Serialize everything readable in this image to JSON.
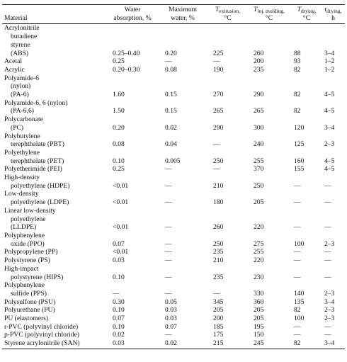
{
  "table": {
    "header": [
      {
        "lines": [
          "Material"
        ]
      },
      {
        "lines": [
          "Water",
          "absorption, %"
        ]
      },
      {
        "lines": [
          "Maximum",
          "water, %"
        ]
      },
      {
        "main": "T",
        "sub": "extrusion,",
        "unit": "°C"
      },
      {
        "main": "T",
        "sub": "inj. molding,",
        "unit": "°C"
      },
      {
        "main": "T",
        "sub": "drying,",
        "unit": "°C"
      },
      {
        "main": "t",
        "sub": "drying,",
        "unit": "h"
      }
    ],
    "rows": [
      {
        "material": [
          "Acrylonitrile",
          "butadiene",
          "styrene",
          "(ABS)"
        ],
        "values": [
          "0.25–0.40",
          "0.20",
          "225",
          "260",
          "88",
          "3–4"
        ]
      },
      {
        "material": [
          "Acetal"
        ],
        "values": [
          "0.25",
          "—",
          "—",
          "200",
          "93",
          "1–2"
        ]
      },
      {
        "material": [
          "Acrylic"
        ],
        "values": [
          "0.20–0.30",
          "0.08",
          "190",
          "235",
          "82",
          "1–2"
        ]
      },
      {
        "material": [
          "Polyamide-6",
          "(nylon)",
          "(PA-6)"
        ],
        "values": [
          "1.60",
          "0.15",
          "270",
          "290",
          "82",
          "4–5"
        ]
      },
      {
        "material": [
          "Polyamide-6, 6 (nylon)",
          "(PA-6,6)"
        ],
        "values": [
          "1.50",
          "0.15",
          "265",
          "265",
          "82",
          "4–5"
        ]
      },
      {
        "material": [
          "Polycarbonate",
          "(PC)"
        ],
        "values": [
          "0.20",
          "0.02",
          "290",
          "300",
          "120",
          "3–4"
        ]
      },
      {
        "material": [
          "Polybutylene",
          "terephthalate (PBT)"
        ],
        "values": [
          "0.08",
          "0.04",
          "—",
          "240",
          "125",
          "2–3"
        ]
      },
      {
        "material": [
          "Polyethylene",
          "terephthalate (PET)"
        ],
        "values": [
          "0.10",
          "0.005",
          "250",
          "255",
          "160",
          "4–5"
        ]
      },
      {
        "material": [
          "Polyetherimide (PEI)"
        ],
        "values": [
          "0.25",
          "—",
          "—",
          "370",
          "155",
          "4–5"
        ]
      },
      {
        "material": [
          "High-density",
          "polyethylene (HDPE)"
        ],
        "values": [
          "<0.01",
          "—",
          "210",
          "250",
          "—",
          "—"
        ]
      },
      {
        "material": [
          "Low-density",
          "polyethylene (LDPE)"
        ],
        "values": [
          "<0.01",
          "—",
          "180",
          "205",
          "—",
          "—"
        ]
      },
      {
        "material": [
          "Linear low-density",
          "polyethylene",
          "(LLDPE)"
        ],
        "values": [
          "<0.01",
          "—",
          "260",
          "220",
          "—",
          "—"
        ]
      },
      {
        "material": [
          "Polyphenylene",
          "oxide (PPO)"
        ],
        "values": [
          "0.07",
          "—",
          "250",
          "275",
          "100",
          "2–3"
        ]
      },
      {
        "material": [
          "Polypropylene (PP)"
        ],
        "values": [
          "<0.01",
          "—",
          "235",
          "255",
          "—",
          "—"
        ]
      },
      {
        "material": [
          "Polystyrene (PS)"
        ],
        "values": [
          "0.03",
          "—",
          "210",
          "220",
          "—",
          "—"
        ]
      },
      {
        "material": [
          "High-impact",
          "polystyrene (HIPS)"
        ],
        "values": [
          "0.10",
          "—",
          "235",
          "230",
          "—",
          "—"
        ]
      },
      {
        "material": [
          "Polyphenylene",
          "sulfide (PPS)"
        ],
        "values": [
          "—",
          "—",
          "—",
          "330",
          "140",
          "2–3"
        ]
      },
      {
        "material": [
          "Polysulfone (PSU)"
        ],
        "values": [
          "0.30",
          "0.05",
          "345",
          "360",
          "135",
          "3–4"
        ]
      },
      {
        "material": [
          "Polyurethane (PU)"
        ],
        "values": [
          "0.10",
          "0.03",
          "205",
          "205",
          "82",
          "2–3"
        ]
      },
      {
        "material": [
          "PU (elastomers)"
        ],
        "values": [
          "0.07",
          "0.03",
          "200",
          "205",
          "100",
          "2–3"
        ]
      },
      {
        "material": [
          "r-PVC (polyvinyl chloride)"
        ],
        "values": [
          "0.10",
          "0.07",
          "185",
          "195",
          "—",
          "—"
        ]
      },
      {
        "material": [
          "p-PVC (polyvinyl chloride)"
        ],
        "values": [
          "0.02",
          "—",
          "175",
          "150",
          "—",
          "—"
        ]
      },
      {
        "material": [
          "Styrene acrylonitrile (SAN)"
        ],
        "values": [
          "0.03",
          "0.02",
          "215",
          "245",
          "82",
          "3–4"
        ]
      }
    ]
  }
}
